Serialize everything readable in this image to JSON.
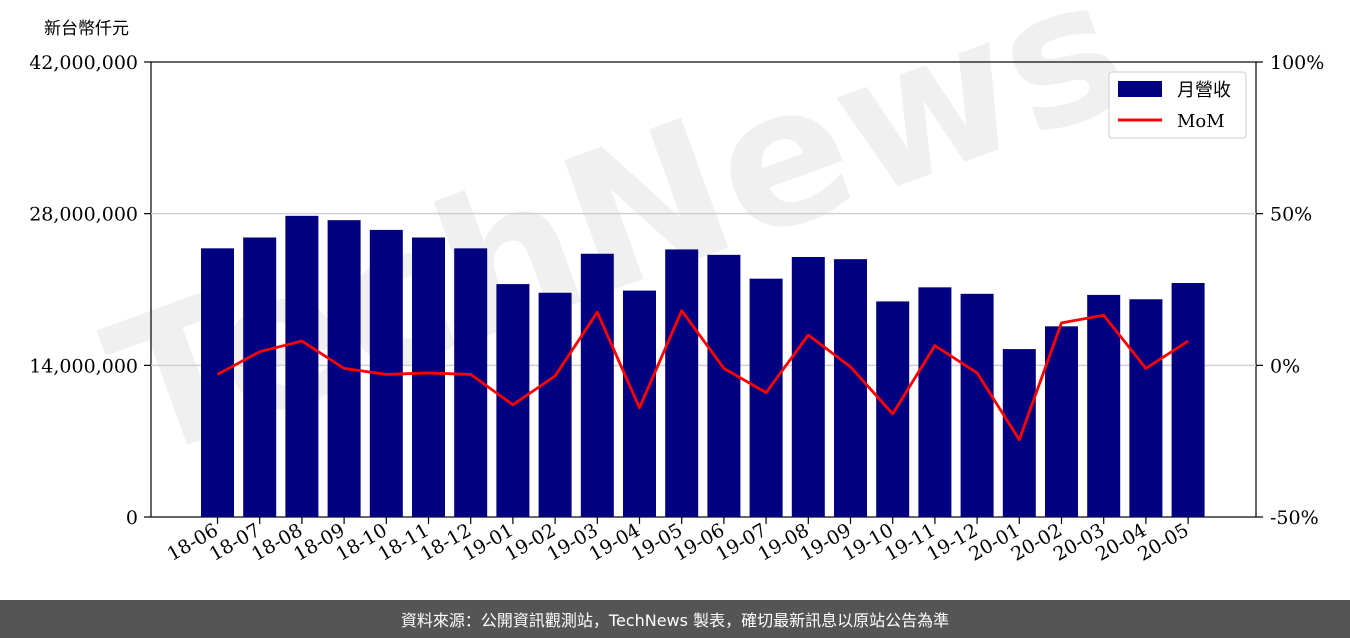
{
  "unit_label": "新台幣仟元",
  "footer_text": "資料來源：公開資訊觀測站，TechNews 製表，確切最新訊息以原站公告為準",
  "watermark": "TechNews",
  "chart_data": {
    "type": "bar",
    "categories": [
      "18-06",
      "18-07",
      "18-08",
      "18-09",
      "18-10",
      "18-11",
      "18-12",
      "19-01",
      "19-02",
      "19-03",
      "19-04",
      "19-05",
      "19-06",
      "19-07",
      "19-08",
      "19-09",
      "19-10",
      "19-11",
      "19-12",
      "20-01",
      "20-02",
      "20-03",
      "20-04",
      "20-05"
    ],
    "series": [
      {
        "name": "月營收",
        "type": "bar",
        "axis": "left",
        "color": "#000080",
        "values": [
          24800000,
          25800000,
          27800000,
          27400000,
          26500000,
          25800000,
          24800000,
          21500000,
          20700000,
          24300000,
          20900000,
          24700000,
          24200000,
          22000000,
          24000000,
          23800000,
          19900000,
          21200000,
          20600000,
          15500000,
          17600000,
          20500000,
          20100000,
          21600000
        ]
      },
      {
        "name": "MoM",
        "type": "line",
        "axis": "right",
        "color": "#ff0000",
        "values": [
          -3.0,
          4.5,
          8.0,
          -1.0,
          -3.0,
          -2.5,
          -3.0,
          -13.0,
          -3.5,
          17.5,
          -14.0,
          18.0,
          -1.0,
          -9.0,
          10.0,
          -0.5,
          -16.0,
          6.5,
          -2.5,
          -24.5,
          14.0,
          16.5,
          -1.0,
          8.0
        ]
      }
    ],
    "y_left": {
      "ylim": [
        0,
        42000000
      ],
      "ticks": [
        "0",
        "14,000,000",
        "28,000,000",
        "42,000,000"
      ]
    },
    "y_right": {
      "ylim": [
        -50,
        100
      ],
      "ticks": [
        "-50%",
        "0%",
        "50%",
        "100%"
      ]
    },
    "grid": "horizontal",
    "legend_position": "top-right"
  }
}
